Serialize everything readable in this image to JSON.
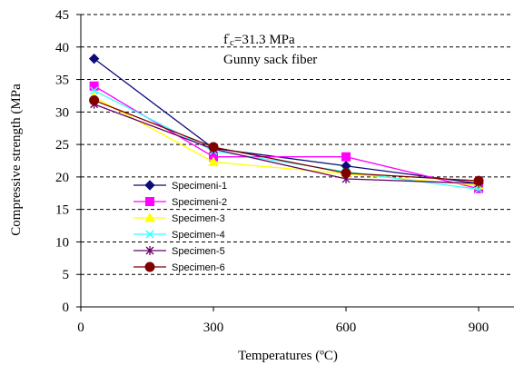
{
  "chart_data": {
    "type": "line",
    "title": "",
    "xlabel": "Temperatures (ºC)",
    "ylabel": "Compressive strength (MPa",
    "x_ticks": [
      0,
      300,
      600,
      900
    ],
    "y_ticks": [
      0,
      5,
      10,
      15,
      20,
      25,
      30,
      35,
      40,
      45
    ],
    "xlim": [
      0,
      980
    ],
    "ylim": [
      0,
      45
    ],
    "grid": "horizontal-dashed",
    "legend_position": "lower-left",
    "annotations": [
      {
        "line1_prefix": "f",
        "line1_sup": "'",
        "line1_sub": "c",
        "line1_rest": "=31.3 MPa"
      },
      {
        "line2": "Gunny sack fiber"
      }
    ],
    "series": [
      {
        "name": "Specimeni-1",
        "color": "#0b0b7a",
        "marker": "diamond",
        "x": [
          30,
          300,
          600,
          900
        ],
        "y": [
          38.2,
          24.4,
          21.7,
          19.0
        ]
      },
      {
        "name": "Specimeni-2",
        "color": "#ff00ff",
        "marker": "square",
        "x": [
          30,
          300,
          600,
          900
        ],
        "y": [
          34.0,
          23.1,
          23.1,
          18.2
        ]
      },
      {
        "name": "Specimen-3",
        "color": "#ffff00",
        "marker": "triangle",
        "x": [
          30,
          300,
          600,
          900
        ],
        "y": [
          32.3,
          22.3,
          20.5,
          18.7
        ]
      },
      {
        "name": "Specimen-4",
        "color": "#33ffff",
        "marker": "x",
        "x": [
          30,
          300,
          600,
          900
        ],
        "y": [
          33.3,
          24.0,
          20.8,
          18.1
        ]
      },
      {
        "name": "Specimen-5",
        "color": "#660066",
        "marker": "star",
        "x": [
          30,
          300,
          600,
          900
        ],
        "y": [
          31.2,
          24.3,
          19.7,
          19.0
        ]
      },
      {
        "name": "Specimen-6",
        "color": "#800000",
        "marker": "circle",
        "x": [
          30,
          300,
          600,
          900
        ],
        "y": [
          31.8,
          24.6,
          20.6,
          19.4
        ]
      }
    ]
  }
}
